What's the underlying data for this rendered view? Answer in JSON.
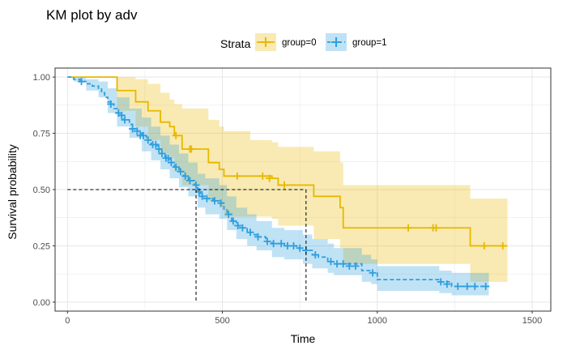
{
  "chart_data": {
    "type": "line",
    "title": "KM plot by adv",
    "xlabel": "Time",
    "ylabel": "Survival probability",
    "xlim": [
      -40,
      1560
    ],
    "ylim": [
      -0.04,
      1.04
    ],
    "xticks": [
      0,
      500,
      1000,
      1500
    ],
    "xtick_labels": [
      "0",
      "500",
      "1000",
      "1500"
    ],
    "yticks": [
      0,
      0.25,
      0.5,
      0.75,
      1.0
    ],
    "ytick_labels": [
      "0.00",
      "0.25",
      "0.50",
      "0.75",
      "1.00"
    ],
    "grid": true,
    "legend": {
      "title": "Strata",
      "position": "top"
    },
    "median_reference": {
      "y": 0.5,
      "x": [
        415,
        770
      ]
    },
    "series": [
      {
        "name": "group=0",
        "color": "#E7B800",
        "band_color": "#E7B800",
        "line_style": "solid",
        "steps": [
          [
            0,
            1.0
          ],
          [
            160,
            0.94
          ],
          [
            220,
            0.89
          ],
          [
            260,
            0.85
          ],
          [
            300,
            0.8
          ],
          [
            330,
            0.78
          ],
          [
            345,
            0.74
          ],
          [
            370,
            0.68
          ],
          [
            400,
            0.68
          ],
          [
            455,
            0.62
          ],
          [
            490,
            0.59
          ],
          [
            505,
            0.56
          ],
          [
            590,
            0.56
          ],
          [
            660,
            0.55
          ],
          [
            680,
            0.52
          ],
          [
            795,
            0.47
          ],
          [
            880,
            0.42
          ],
          [
            890,
            0.33
          ],
          [
            1290,
            0.33
          ],
          [
            1300,
            0.25
          ],
          [
            1420,
            0.25
          ]
        ],
        "upper": [
          [
            0,
            1.0
          ],
          [
            160,
            1.0
          ],
          [
            220,
            0.99
          ],
          [
            260,
            0.97
          ],
          [
            300,
            0.93
          ],
          [
            330,
            0.9
          ],
          [
            345,
            0.88
          ],
          [
            370,
            0.86
          ],
          [
            455,
            0.81
          ],
          [
            490,
            0.78
          ],
          [
            505,
            0.76
          ],
          [
            590,
            0.72
          ],
          [
            660,
            0.71
          ],
          [
            680,
            0.69
          ],
          [
            795,
            0.67
          ],
          [
            880,
            0.62
          ],
          [
            890,
            0.52
          ],
          [
            1290,
            0.52
          ],
          [
            1300,
            0.46
          ],
          [
            1420,
            0.46
          ]
        ],
        "lower": [
          [
            0,
            1.0
          ],
          [
            160,
            0.85
          ],
          [
            220,
            0.78
          ],
          [
            260,
            0.72
          ],
          [
            300,
            0.66
          ],
          [
            330,
            0.64
          ],
          [
            345,
            0.58
          ],
          [
            370,
            0.52
          ],
          [
            455,
            0.45
          ],
          [
            490,
            0.42
          ],
          [
            505,
            0.38
          ],
          [
            590,
            0.38
          ],
          [
            660,
            0.37
          ],
          [
            680,
            0.34
          ],
          [
            795,
            0.28
          ],
          [
            880,
            0.24
          ],
          [
            890,
            0.17
          ],
          [
            1290,
            0.17
          ],
          [
            1300,
            0.09
          ],
          [
            1420,
            0.09
          ]
        ],
        "censored": [
          [
            350,
            0.74
          ],
          [
            395,
            0.68
          ],
          [
            400,
            0.68
          ],
          [
            548,
            0.56
          ],
          [
            630,
            0.56
          ],
          [
            652,
            0.55
          ],
          [
            700,
            0.52
          ],
          [
            1100,
            0.33
          ],
          [
            1180,
            0.33
          ],
          [
            1190,
            0.33
          ],
          [
            1345,
            0.25
          ],
          [
            1405,
            0.25
          ]
        ]
      },
      {
        "name": "group=1",
        "color": "#2E9FDF",
        "band_color": "#2E9FDF",
        "line_style": "dashed",
        "steps": [
          [
            0,
            1.0
          ],
          [
            20,
            0.99
          ],
          [
            40,
            0.98
          ],
          [
            60,
            0.97
          ],
          [
            80,
            0.96
          ],
          [
            100,
            0.95
          ],
          [
            110,
            0.93
          ],
          [
            120,
            0.91
          ],
          [
            130,
            0.89
          ],
          [
            140,
            0.88
          ],
          [
            150,
            0.86
          ],
          [
            160,
            0.84
          ],
          [
            170,
            0.83
          ],
          [
            180,
            0.81
          ],
          [
            200,
            0.79
          ],
          [
            210,
            0.77
          ],
          [
            220,
            0.76
          ],
          [
            240,
            0.74
          ],
          [
            255,
            0.72
          ],
          [
            270,
            0.7
          ],
          [
            290,
            0.68
          ],
          [
            300,
            0.66
          ],
          [
            315,
            0.64
          ],
          [
            330,
            0.62
          ],
          [
            345,
            0.6
          ],
          [
            360,
            0.58
          ],
          [
            375,
            0.56
          ],
          [
            390,
            0.54
          ],
          [
            410,
            0.52
          ],
          [
            420,
            0.49
          ],
          [
            430,
            0.47
          ],
          [
            445,
            0.46
          ],
          [
            470,
            0.45
          ],
          [
            490,
            0.44
          ],
          [
            505,
            0.41
          ],
          [
            515,
            0.39
          ],
          [
            530,
            0.36
          ],
          [
            545,
            0.34
          ],
          [
            560,
            0.33
          ],
          [
            580,
            0.31
          ],
          [
            600,
            0.3
          ],
          [
            610,
            0.29
          ],
          [
            640,
            0.27
          ],
          [
            660,
            0.26
          ],
          [
            700,
            0.25
          ],
          [
            740,
            0.24
          ],
          [
            760,
            0.23
          ],
          [
            790,
            0.21
          ],
          [
            810,
            0.2
          ],
          [
            840,
            0.18
          ],
          [
            860,
            0.17
          ],
          [
            950,
            0.14
          ],
          [
            980,
            0.13
          ],
          [
            1000,
            0.1
          ],
          [
            1200,
            0.09
          ],
          [
            1240,
            0.07
          ],
          [
            1360,
            0.07
          ]
        ],
        "upper": [
          [
            0,
            1.0
          ],
          [
            20,
            1.0
          ],
          [
            60,
            0.99
          ],
          [
            100,
            0.98
          ],
          [
            130,
            0.95
          ],
          [
            160,
            0.91
          ],
          [
            200,
            0.86
          ],
          [
            240,
            0.82
          ],
          [
            270,
            0.78
          ],
          [
            300,
            0.74
          ],
          [
            330,
            0.7
          ],
          [
            360,
            0.66
          ],
          [
            390,
            0.62
          ],
          [
            420,
            0.57
          ],
          [
            445,
            0.55
          ],
          [
            490,
            0.52
          ],
          [
            515,
            0.47
          ],
          [
            545,
            0.42
          ],
          [
            580,
            0.39
          ],
          [
            610,
            0.36
          ],
          [
            660,
            0.33
          ],
          [
            700,
            0.32
          ],
          [
            760,
            0.3
          ],
          [
            790,
            0.28
          ],
          [
            840,
            0.26
          ],
          [
            860,
            0.24
          ],
          [
            950,
            0.21
          ],
          [
            980,
            0.19
          ],
          [
            1000,
            0.16
          ],
          [
            1200,
            0.14
          ],
          [
            1240,
            0.13
          ],
          [
            1360,
            0.13
          ]
        ],
        "lower": [
          [
            0,
            1.0
          ],
          [
            20,
            0.98
          ],
          [
            60,
            0.94
          ],
          [
            100,
            0.91
          ],
          [
            130,
            0.84
          ],
          [
            160,
            0.78
          ],
          [
            200,
            0.73
          ],
          [
            240,
            0.67
          ],
          [
            270,
            0.63
          ],
          [
            300,
            0.59
          ],
          [
            330,
            0.55
          ],
          [
            360,
            0.51
          ],
          [
            390,
            0.47
          ],
          [
            420,
            0.42
          ],
          [
            445,
            0.39
          ],
          [
            490,
            0.37
          ],
          [
            515,
            0.32
          ],
          [
            545,
            0.28
          ],
          [
            580,
            0.25
          ],
          [
            610,
            0.23
          ],
          [
            660,
            0.2
          ],
          [
            700,
            0.19
          ],
          [
            760,
            0.17
          ],
          [
            790,
            0.15
          ],
          [
            840,
            0.13
          ],
          [
            860,
            0.12
          ],
          [
            950,
            0.09
          ],
          [
            980,
            0.08
          ],
          [
            1000,
            0.05
          ],
          [
            1200,
            0.04
          ],
          [
            1240,
            0.03
          ],
          [
            1360,
            0.03
          ]
        ],
        "censored": [
          [
            45,
            0.98
          ],
          [
            140,
            0.88
          ],
          [
            165,
            0.84
          ],
          [
            175,
            0.83
          ],
          [
            185,
            0.81
          ],
          [
            210,
            0.77
          ],
          [
            225,
            0.76
          ],
          [
            235,
            0.74
          ],
          [
            245,
            0.74
          ],
          [
            260,
            0.72
          ],
          [
            275,
            0.7
          ],
          [
            285,
            0.7
          ],
          [
            295,
            0.68
          ],
          [
            305,
            0.66
          ],
          [
            318,
            0.64
          ],
          [
            325,
            0.64
          ],
          [
            335,
            0.62
          ],
          [
            350,
            0.6
          ],
          [
            365,
            0.58
          ],
          [
            380,
            0.56
          ],
          [
            395,
            0.54
          ],
          [
            415,
            0.52
          ],
          [
            425,
            0.49
          ],
          [
            435,
            0.47
          ],
          [
            450,
            0.46
          ],
          [
            475,
            0.45
          ],
          [
            495,
            0.44
          ],
          [
            520,
            0.39
          ],
          [
            535,
            0.36
          ],
          [
            550,
            0.34
          ],
          [
            565,
            0.33
          ],
          [
            590,
            0.31
          ],
          [
            615,
            0.29
          ],
          [
            645,
            0.27
          ],
          [
            665,
            0.26
          ],
          [
            690,
            0.26
          ],
          [
            710,
            0.25
          ],
          [
            730,
            0.25
          ],
          [
            750,
            0.24
          ],
          [
            770,
            0.23
          ],
          [
            800,
            0.21
          ],
          [
            850,
            0.18
          ],
          [
            870,
            0.17
          ],
          [
            890,
            0.17
          ],
          [
            910,
            0.16
          ],
          [
            930,
            0.16
          ],
          [
            985,
            0.13
          ],
          [
            1205,
            0.09
          ],
          [
            1225,
            0.08
          ],
          [
            1260,
            0.07
          ],
          [
            1290,
            0.07
          ],
          [
            1315,
            0.07
          ],
          [
            1350,
            0.07
          ]
        ]
      }
    ]
  }
}
